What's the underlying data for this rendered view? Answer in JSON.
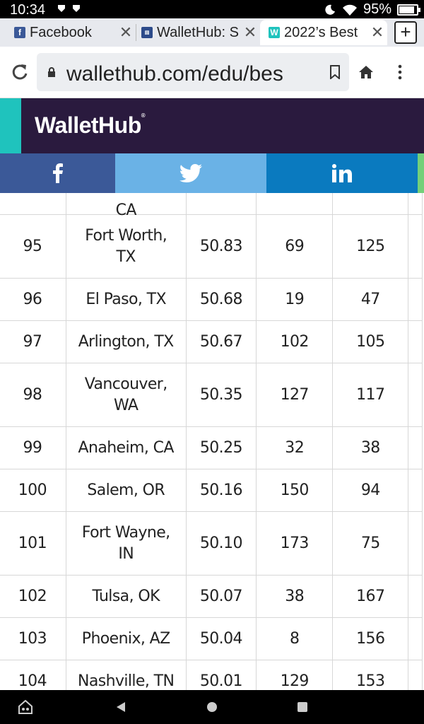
{
  "status_bar": {
    "time": "10:34",
    "battery_text": "95%",
    "battery_level": 0.95
  },
  "tabs": [
    {
      "title": "Facebook",
      "favicon": "f",
      "favicon_color": "#3b5998",
      "active": false
    },
    {
      "title": "WalletHub: S",
      "favicon": "wh",
      "favicon_color": "#2d4b8a",
      "active": false
    },
    {
      "title": "2022’s Best",
      "favicon": "W",
      "favicon_color": "#1fc3bd",
      "active": true
    }
  ],
  "address_bar": {
    "url": "wallethub.com/edu/bes"
  },
  "site": {
    "logo": "WalletHub",
    "header_color": "#2a1a3e",
    "accent_color": "#1fc3bd"
  },
  "share_bar": {
    "facebook_icon": "facebook-icon",
    "twitter_icon": "twitter-icon",
    "linkedin_icon": "linkedin-icon",
    "colors": {
      "facebook": "#3b5998",
      "twitter": "#6ab2e6",
      "linkedin": "#0a7abf"
    }
  },
  "table": {
    "partial_row_city": "CA",
    "rows": [
      {
        "rank": "95",
        "city_line1": "Fort Worth,",
        "city_line2": "TX",
        "score": "50.83",
        "col4": "69",
        "col5": "125"
      },
      {
        "rank": "96",
        "city_line1": "El Paso, TX",
        "city_line2": "",
        "score": "50.68",
        "col4": "19",
        "col5": "47"
      },
      {
        "rank": "97",
        "city_line1": "Arlington, TX",
        "city_line2": "",
        "score": "50.67",
        "col4": "102",
        "col5": "105"
      },
      {
        "rank": "98",
        "city_line1": "Vancouver,",
        "city_line2": "WA",
        "score": "50.35",
        "col4": "127",
        "col5": "117"
      },
      {
        "rank": "99",
        "city_line1": "Anaheim, CA",
        "city_line2": "",
        "score": "50.25",
        "col4": "32",
        "col5": "38"
      },
      {
        "rank": "100",
        "city_line1": "Salem, OR",
        "city_line2": "",
        "score": "50.16",
        "col4": "150",
        "col5": "94"
      },
      {
        "rank": "101",
        "city_line1": "Fort Wayne,",
        "city_line2": "IN",
        "score": "50.10",
        "col4": "173",
        "col5": "75"
      },
      {
        "rank": "102",
        "city_line1": "Tulsa, OK",
        "city_line2": "",
        "score": "50.07",
        "col4": "38",
        "col5": "167"
      },
      {
        "rank": "103",
        "city_line1": "Phoenix, AZ",
        "city_line2": "",
        "score": "50.04",
        "col4": "8",
        "col5": "156"
      },
      {
        "rank": "104",
        "city_line1": "Nashville, TN",
        "city_line2": "",
        "score": "50.01",
        "col4": "129",
        "col5": "153"
      }
    ]
  }
}
